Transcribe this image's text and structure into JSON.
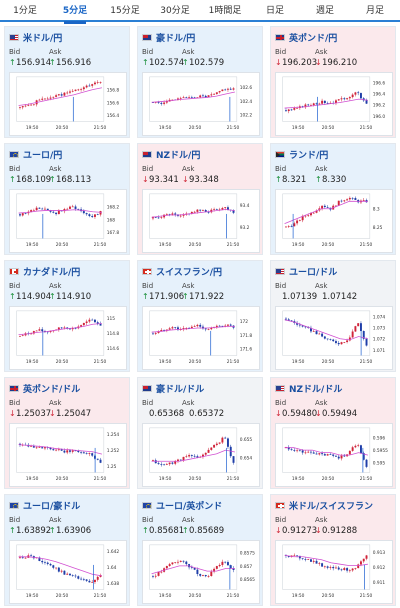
{
  "tabs": [
    {
      "label": "1分足",
      "active": false
    },
    {
      "label": "5分足",
      "active": true
    },
    {
      "label": "15分足",
      "active": false
    },
    {
      "label": "30分足",
      "active": false
    },
    {
      "label": "1時間足",
      "active": false
    },
    {
      "label": "日足",
      "active": false
    },
    {
      "label": "週足",
      "active": false
    },
    {
      "label": "月足",
      "active": false
    }
  ],
  "labels": {
    "bid": "Bid",
    "ask": "Ask"
  },
  "colors": {
    "bull": "#d0243a",
    "bear": "#1f3ea8",
    "ma": "#d14fd1",
    "marker": "#2f6cd4",
    "up_arrow": "#1a8f3a",
    "down_arrow": "#d02a3a"
  },
  "panels": [
    {
      "name": "米ドル/円",
      "flag": "us",
      "dir": "up",
      "bid_arrow": "↑",
      "bid": "156.914",
      "ask_arrow": "↑",
      "ask": "156.916",
      "chart_data": {
        "type": "candlestick",
        "x_ticks": [
          "19:50",
          "20:50",
          "21:50"
        ],
        "y_ticks": [
          "156.8",
          "156.6",
          "156.4"
        ],
        "ylim": [
          156.3,
          157.0
        ],
        "trend": [
          156.52,
          156.55,
          156.62,
          156.67,
          156.7,
          156.74,
          156.78,
          156.82,
          156.88,
          156.91
        ],
        "ma": [
          156.55,
          156.57,
          156.6,
          156.63,
          156.66,
          156.69,
          156.72,
          156.76,
          156.8,
          156.83
        ],
        "marker": 0.65
      }
    },
    {
      "name": "豪ドル/円",
      "flag": "au",
      "dir": "up",
      "bid_arrow": "↑",
      "bid": "102.574",
      "ask_arrow": "↑",
      "ask": "102.579",
      "chart_data": {
        "type": "candlestick",
        "x_ticks": [
          "19:50",
          "20:50",
          "21:50"
        ],
        "y_ticks": [
          "102.6",
          "102.4",
          "102.2"
        ],
        "ylim": [
          102.1,
          102.75
        ],
        "trend": [
          102.38,
          102.36,
          102.42,
          102.45,
          102.44,
          102.47,
          102.46,
          102.5,
          102.58,
          102.57
        ],
        "ma": [
          102.38,
          102.39,
          102.4,
          102.42,
          102.43,
          102.44,
          102.45,
          102.47,
          102.5,
          102.53
        ],
        "marker": 0.92
      }
    },
    {
      "name": "英ポンド/円",
      "flag": "gb",
      "dir": "down",
      "bid_arrow": "↓",
      "bid": "196.203",
      "ask_arrow": "↓",
      "ask": "196.210",
      "chart_data": {
        "type": "candlestick",
        "x_ticks": [
          "19:50",
          "20:50",
          "21:50"
        ],
        "y_ticks": [
          "196.6",
          "196.4",
          "196.2",
          "196.0"
        ],
        "ylim": [
          195.9,
          196.7
        ],
        "trend": [
          196.1,
          196.12,
          196.18,
          196.22,
          196.25,
          196.24,
          196.28,
          196.35,
          196.42,
          196.2
        ],
        "ma": [
          196.14,
          196.15,
          196.16,
          196.18,
          196.2,
          196.22,
          196.24,
          196.27,
          196.3,
          196.28
        ],
        "marker": 0.4
      }
    },
    {
      "name": "ユーロ/円",
      "flag": "eu",
      "dir": "up",
      "bid_arrow": "↑",
      "bid": "168.109",
      "ask_arrow": "↑",
      "ask": "168.113",
      "chart_data": {
        "type": "candlestick",
        "x_ticks": [
          "19:50",
          "20:50",
          "21:50"
        ],
        "y_ticks": [
          "168.2",
          "168",
          "167.8"
        ],
        "ylim": [
          167.7,
          168.4
        ],
        "trend": [
          168.08,
          168.12,
          168.18,
          168.14,
          168.1,
          168.16,
          168.2,
          168.12,
          168.05,
          168.11
        ],
        "ma": [
          168.1,
          168.11,
          168.13,
          168.14,
          168.14,
          168.14,
          168.15,
          168.14,
          168.12,
          168.11
        ],
        "marker": 0.3
      }
    },
    {
      "name": "NZドル/円",
      "flag": "nz",
      "dir": "down",
      "bid_arrow": "↓",
      "bid": "93.341",
      "ask_arrow": "↓",
      "ask": "93.348",
      "chart_data": {
        "type": "candlestick",
        "x_ticks": [
          "19:50",
          "20:50",
          "21:50"
        ],
        "y_ticks": [
          "93.4",
          "93.2"
        ],
        "ylim": [
          93.1,
          93.5
        ],
        "trend": [
          93.28,
          93.3,
          93.32,
          93.29,
          93.33,
          93.35,
          93.34,
          93.36,
          93.38,
          93.34
        ],
        "ma": [
          93.29,
          93.3,
          93.31,
          93.31,
          93.32,
          93.33,
          93.34,
          93.35,
          93.36,
          93.35
        ],
        "marker": 0.88
      }
    },
    {
      "name": "ランド/円",
      "flag": "za",
      "dir": "up",
      "bid_arrow": "↑",
      "bid": "8.321",
      "ask_arrow": "↑",
      "ask": "8.330",
      "chart_data": {
        "type": "candlestick",
        "x_ticks": [
          "19:50",
          "20:50",
          "21:50"
        ],
        "y_ticks": [
          "8.3",
          "8.25"
        ],
        "ylim": [
          8.22,
          8.34
        ],
        "trend": [
          8.25,
          8.26,
          8.28,
          8.29,
          8.31,
          8.3,
          8.32,
          8.33,
          8.32,
          8.32
        ],
        "ma": [
          8.26,
          8.27,
          8.28,
          8.29,
          8.3,
          8.3,
          8.31,
          8.32,
          8.32,
          8.32
        ],
        "marker": 0.12
      }
    },
    {
      "name": "カナダドル/円",
      "flag": "ca",
      "dir": "up",
      "bid_arrow": "↑",
      "bid": "114.904",
      "ask_arrow": "↑",
      "ask": "114.910",
      "chart_data": {
        "type": "candlestick",
        "x_ticks": [
          "19:50",
          "20:50",
          "21:50"
        ],
        "y_ticks": [
          "115",
          "114.8",
          "114.6"
        ],
        "ylim": [
          114.5,
          115.1
        ],
        "trend": [
          114.76,
          114.8,
          114.84,
          114.82,
          114.85,
          114.88,
          114.86,
          114.92,
          114.98,
          114.91
        ],
        "ma": [
          114.78,
          114.79,
          114.81,
          114.82,
          114.84,
          114.86,
          114.87,
          114.89,
          114.92,
          114.93
        ],
        "marker": 0.3
      }
    },
    {
      "name": "スイスフラン/円",
      "flag": "ch",
      "dir": "up",
      "bid_arrow": "↑",
      "bid": "171.906",
      "ask_arrow": "↑",
      "ask": "171.922",
      "chart_data": {
        "type": "candlestick",
        "x_ticks": [
          "19:50",
          "20:50",
          "21:50"
        ],
        "y_ticks": [
          "172",
          "171.8",
          "171.6"
        ],
        "ylim": [
          171.5,
          172.15
        ],
        "trend": [
          171.82,
          171.86,
          171.92,
          171.88,
          171.9,
          171.94,
          171.88,
          171.91,
          171.95,
          171.91
        ],
        "ma": [
          171.84,
          171.85,
          171.87,
          171.88,
          171.89,
          171.9,
          171.9,
          171.91,
          171.92,
          171.92
        ],
        "marker": 0.7
      }
    },
    {
      "name": "ユーロ/ドル",
      "flag": "us",
      "dir": "flat",
      "bid_arrow": "",
      "bid": "1.07139",
      "ask_arrow": "",
      "ask": "1.07142",
      "chart_data": {
        "type": "candlestick",
        "x_ticks": [
          "19:50",
          "20:50",
          "21:50"
        ],
        "y_ticks": [
          "1.074",
          "1.073",
          "1.072",
          "1.071"
        ],
        "ylim": [
          1.0705,
          1.0745
        ],
        "trend": [
          1.0738,
          1.0734,
          1.073,
          1.0727,
          1.0722,
          1.0718,
          1.0716,
          1.072,
          1.0735,
          1.0714
        ],
        "ma": [
          1.0737,
          1.0735,
          1.0732,
          1.0729,
          1.0726,
          1.0723,
          1.072,
          1.0719,
          1.0722,
          1.072
        ],
        "marker": 0.9
      }
    },
    {
      "name": "英ポンド/ドル",
      "flag": "gb",
      "dir": "down",
      "bid_arrow": "↓",
      "bid": "1.25037",
      "ask_arrow": "↓",
      "ask": "1.25047",
      "chart_data": {
        "type": "candlestick",
        "x_ticks": [
          "19:50",
          "20:50",
          "21:50"
        ],
        "y_ticks": [
          "1.254",
          "1.252",
          "1.25"
        ],
        "ylim": [
          1.2492,
          1.2548
        ],
        "trend": [
          1.2528,
          1.2526,
          1.2524,
          1.2522,
          1.252,
          1.2518,
          1.2519,
          1.2517,
          1.2515,
          1.2504
        ],
        "ma": [
          1.2527,
          1.2526,
          1.2525,
          1.2524,
          1.2522,
          1.2521,
          1.252,
          1.2519,
          1.2518,
          1.2515
        ],
        "marker": 0.9
      }
    },
    {
      "name": "豪ドル/ドル",
      "flag": "au",
      "dir": "flat",
      "bid_arrow": "",
      "bid": "0.65368",
      "ask_arrow": "",
      "ask": "0.65372",
      "chart_data": {
        "type": "candlestick",
        "x_ticks": [
          "19:50",
          "20:50",
          "21:50"
        ],
        "y_ticks": [
          "0.655",
          "0.654"
        ],
        "ylim": [
          0.6532,
          0.6556
        ],
        "trend": [
          0.6538,
          0.6536,
          0.6537,
          0.6539,
          0.6541,
          0.654,
          0.6543,
          0.6547,
          0.6551,
          0.6537
        ],
        "ma": [
          0.6538,
          0.6538,
          0.6538,
          0.6538,
          0.6539,
          0.654,
          0.6541,
          0.6542,
          0.6544,
          0.6543
        ],
        "marker": 0.88
      }
    },
    {
      "name": "NZドル/ドル",
      "flag": "us",
      "dir": "down",
      "bid_arrow": "↓",
      "bid": "0.59480",
      "ask_arrow": "↓",
      "ask": "0.59494",
      "chart_data": {
        "type": "candlestick",
        "x_ticks": [
          "19:50",
          "20:50",
          "21:50"
        ],
        "y_ticks": [
          "0.596",
          "0.5955",
          "0.595"
        ],
        "ylim": [
          0.5946,
          0.5964
        ],
        "trend": [
          0.5956,
          0.5955,
          0.5954,
          0.5954,
          0.5953,
          0.5953,
          0.5952,
          0.5954,
          0.5958,
          0.5948
        ],
        "ma": [
          0.5956,
          0.5956,
          0.5955,
          0.5955,
          0.5954,
          0.5954,
          0.5953,
          0.5953,
          0.5954,
          0.5953
        ],
        "marker": 0.92
      }
    },
    {
      "name": "ユーロ/豪ドル",
      "flag": "eu",
      "dir": "up",
      "bid_arrow": "↑",
      "bid": "1.63892",
      "ask_arrow": "↑",
      "ask": "1.63906",
      "chart_data": {
        "type": "candlestick",
        "x_ticks": [
          "19:50",
          "20:50",
          "21:50"
        ],
        "y_ticks": [
          "1.642",
          "1.64",
          "1.638"
        ],
        "ylim": [
          1.6372,
          1.6428
        ],
        "trend": [
          1.6412,
          1.6414,
          1.641,
          1.6405,
          1.6398,
          1.6392,
          1.6388,
          1.6384,
          1.638,
          1.6389
        ],
        "ma": [
          1.6413,
          1.6413,
          1.6412,
          1.641,
          1.6407,
          1.6403,
          1.6399,
          1.6395,
          1.6391,
          1.6389
        ],
        "marker": 0.88
      }
    },
    {
      "name": "ユーロ/英ポンド",
      "flag": "eu",
      "dir": "up",
      "bid_arrow": "↑",
      "bid": "0.85681",
      "ask_arrow": "↑",
      "ask": "0.85689",
      "chart_data": {
        "type": "candlestick",
        "x_ticks": [
          "19:50",
          "20:50",
          "21:50"
        ],
        "y_ticks": [
          "0.8575",
          "0.857",
          "0.8565"
        ],
        "ylim": [
          0.8561,
          0.8578
        ],
        "trend": [
          0.8566,
          0.8568,
          0.8571,
          0.8572,
          0.857,
          0.8567,
          0.8566,
          0.8569,
          0.8572,
          0.8568
        ],
        "ma": [
          0.8567,
          0.8568,
          0.8569,
          0.857,
          0.857,
          0.8569,
          0.8568,
          0.8568,
          0.8569,
          0.8569
        ],
        "marker": 0.92
      }
    },
    {
      "name": "米ドル/スイスフラン",
      "flag": "ch",
      "dir": "down",
      "bid_arrow": "↓",
      "bid": "0.91273",
      "ask_arrow": "↓",
      "ask": "0.91288",
      "chart_data": {
        "type": "candlestick",
        "x_ticks": [
          "19:50",
          "20:50",
          "21:50"
        ],
        "y_ticks": [
          "0.913",
          "0.912",
          "0.911"
        ],
        "ylim": [
          0.9105,
          0.9135
        ],
        "trend": [
          0.9128,
          0.9127,
          0.9126,
          0.9124,
          0.9121,
          0.912,
          0.9119,
          0.9118,
          0.9121,
          0.9127
        ],
        "ma": [
          0.9128,
          0.9127,
          0.9127,
          0.9126,
          0.9125,
          0.9123,
          0.9122,
          0.9121,
          0.9121,
          0.9122
        ],
        "marker": 0.94
      }
    }
  ]
}
